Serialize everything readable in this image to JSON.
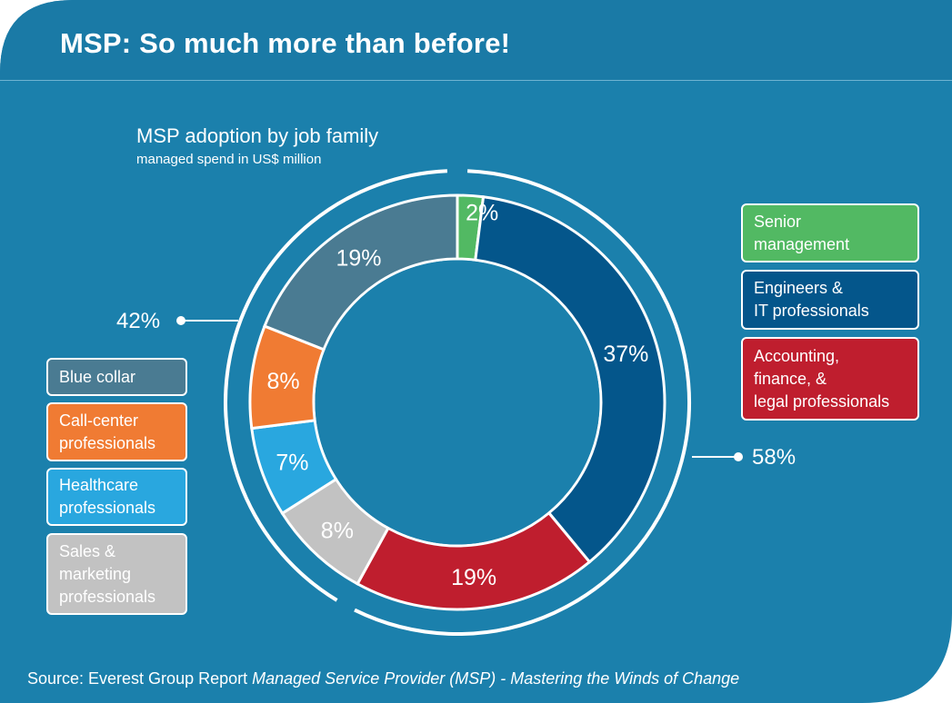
{
  "header": {
    "title": "MSP: So much more than before!"
  },
  "footer": {
    "source_prefix": "Source: Everest Group Report ",
    "source_title": "Managed Service Provider (MSP) - Mastering the Winds of Change"
  },
  "colors": {
    "background": "#1b80ac",
    "title_bar": "#1a7aa6",
    "donut_center": "#1b80ac"
  },
  "chart_data": {
    "type": "pie",
    "variant": "donut",
    "title": "MSP adoption by job family",
    "subtitle": "managed spend in US$ million",
    "unit": "%",
    "slices": [
      {
        "name": "Senior management",
        "value": 2,
        "label": "2%",
        "color": "#52b963"
      },
      {
        "name": "Engineers & IT professionals",
        "value": 37,
        "label": "37%",
        "color": "#04568b"
      },
      {
        "name": "Accounting, finance, & legal professionals",
        "value": 19,
        "label": "19%",
        "color": "#bf1e2e"
      },
      {
        "name": "Sales & marketing professionals",
        "value": 8,
        "label": "8%",
        "color": "#c2c2c2"
      },
      {
        "name": "Healthcare professionals",
        "value": 7,
        "label": "7%",
        "color": "#29a7df"
      },
      {
        "name": "Call-center professionals",
        "value": 8,
        "label": "8%",
        "color": "#f07b33"
      },
      {
        "name": "Blue collar",
        "value": 19,
        "label": "19%",
        "color": "#4a7b92"
      }
    ],
    "groups": [
      {
        "label": "58%",
        "members": [
          "Senior management",
          "Engineers & IT professionals",
          "Accounting, finance, & legal professionals"
        ]
      },
      {
        "label": "42%",
        "members": [
          "Sales & marketing professionals",
          "Healthcare professionals",
          "Call-center professionals",
          "Blue collar"
        ]
      }
    ],
    "legend_right": [
      {
        "lines": [
          "Senior",
          "management"
        ],
        "color": "#52b963"
      },
      {
        "lines": [
          "Engineers &",
          "IT professionals"
        ],
        "color": "#04568b"
      },
      {
        "lines": [
          "Accounting,",
          "finance, &",
          "legal professionals"
        ],
        "color": "#bf1e2e"
      }
    ],
    "legend_left": [
      {
        "lines": [
          "Blue collar"
        ],
        "color": "#4a7b92"
      },
      {
        "lines": [
          "Call-center",
          "professionals"
        ],
        "color": "#f07b33"
      },
      {
        "lines": [
          "Healthcare",
          "professionals"
        ],
        "color": "#29a7df"
      },
      {
        "lines": [
          "Sales &",
          "marketing",
          "professionals"
        ],
        "color": "#c2c2c2"
      }
    ]
  }
}
